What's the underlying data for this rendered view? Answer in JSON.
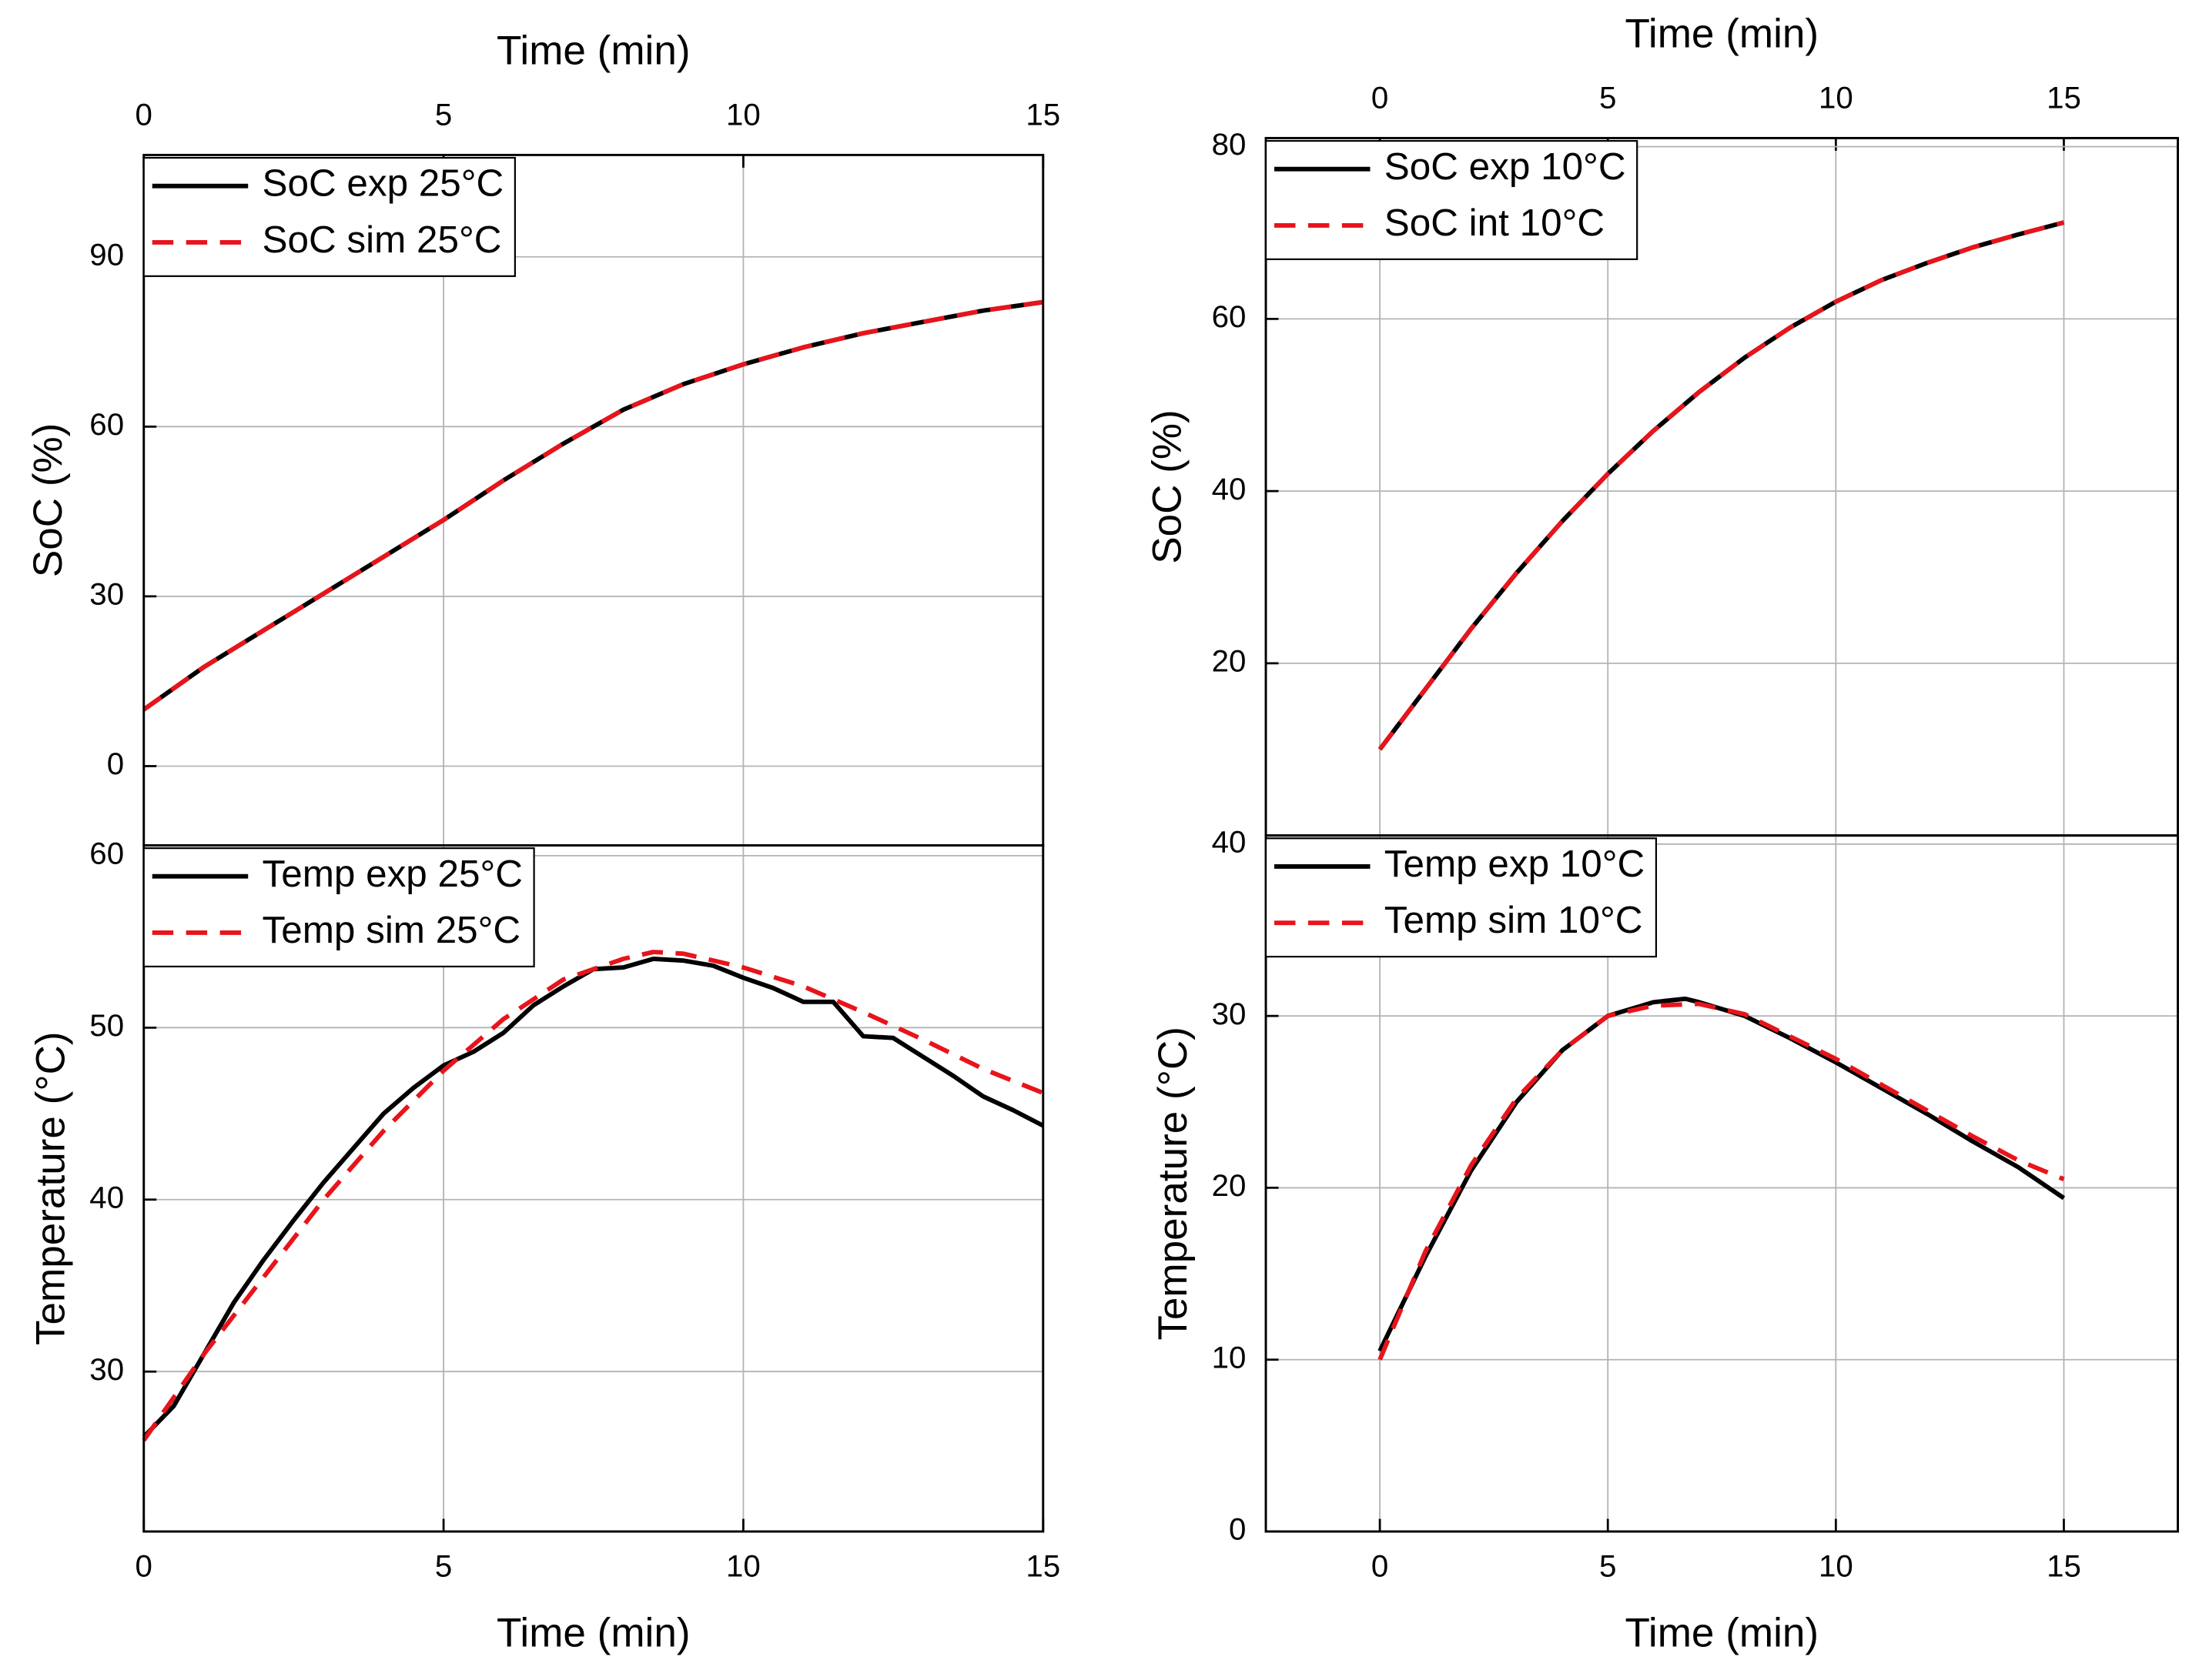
{
  "chart_data": [
    {
      "type": "line",
      "xlabel": "Time (min)",
      "ylabel": "SoC (%)",
      "xaxis_position": "top",
      "xlim": [
        0,
        15
      ],
      "xticks": [
        0,
        5,
        10,
        15
      ],
      "ylim": [
        -14,
        108
      ],
      "yticks": [
        0,
        30,
        60,
        90
      ],
      "grid": true,
      "legend": "upper left",
      "series": [
        {
          "name": "SoC exp 25°C",
          "color": "#000000",
          "dashed": false,
          "x": [
            0,
            1,
            2,
            3,
            4,
            5,
            6,
            7,
            8,
            9,
            10,
            11,
            12,
            13,
            14,
            15
          ],
          "values": [
            10,
            17.5,
            24,
            30.5,
            37,
            43.5,
            50.5,
            57,
            63,
            67.5,
            71,
            74,
            76.5,
            78.5,
            80.5,
            82
          ]
        },
        {
          "name": "SoC sim 25°C",
          "color": "#e8141b",
          "dashed": true,
          "x": [
            0,
            1,
            2,
            3,
            4,
            5,
            6,
            7,
            8,
            9,
            10,
            11,
            12,
            13,
            14,
            15
          ],
          "values": [
            10,
            17.5,
            24,
            30.5,
            37,
            43.5,
            50.5,
            57,
            63,
            67.5,
            71,
            74,
            76.5,
            78.5,
            80.5,
            82
          ]
        }
      ]
    },
    {
      "type": "line",
      "xlabel": "Time (min)",
      "ylabel": "Temperature (°C)",
      "xaxis_position": "bottom",
      "xlim": [
        0,
        15
      ],
      "xticks": [
        0,
        5,
        10,
        15
      ],
      "ylim": [
        20.7,
        60.6
      ],
      "yticks": [
        30,
        40,
        50,
        60
      ],
      "grid": true,
      "legend": "upper left",
      "series": [
        {
          "name": "Temp exp 25°C",
          "color": "#000000",
          "dashed": false,
          "x": [
            0,
            0.5,
            1,
            1.5,
            2,
            2.5,
            3,
            3.5,
            4,
            4.5,
            5,
            5.5,
            6,
            6.5,
            7,
            7.5,
            8,
            8.5,
            9,
            9.5,
            10,
            10.5,
            11,
            11.5,
            12,
            12.5,
            13,
            13.5,
            14,
            14.5,
            15
          ],
          "values": [
            26.2,
            28,
            31,
            34,
            36.5,
            38.8,
            41,
            43,
            45,
            46.5,
            47.8,
            48.6,
            49.7,
            51.3,
            52.4,
            53.4,
            53.5,
            54,
            53.9,
            53.6,
            52.9,
            52.3,
            51.5,
            51.5,
            49.5,
            49.4,
            48.3,
            47.2,
            46,
            45.2,
            44.3
          ]
        },
        {
          "name": "Temp sim 25°C",
          "color": "#e8141b",
          "dashed": true,
          "x": [
            0,
            1,
            2,
            3,
            4,
            5,
            6,
            7,
            8,
            8.5,
            9,
            10,
            11,
            12,
            13,
            14,
            15
          ],
          "values": [
            26,
            31,
            35.5,
            40,
            44,
            47.5,
            50.5,
            52.8,
            54,
            54.4,
            54.3,
            53.5,
            52.4,
            50.9,
            49.3,
            47.6,
            46.2
          ]
        }
      ]
    },
    {
      "type": "line",
      "xlabel": "Time (min)",
      "ylabel": "SoC (%)",
      "xaxis_position": "top",
      "xlim": [
        -2.5,
        17.5
      ],
      "xticks": [
        0,
        5,
        10,
        15
      ],
      "ylim": [
        0,
        81
      ],
      "yticks": [
        20,
        40,
        60,
        80
      ],
      "grid": true,
      "legend": "upper left",
      "series": [
        {
          "name": "SoC exp 10°C",
          "color": "#000000",
          "dashed": false,
          "x": [
            0,
            1,
            2,
            3,
            4,
            5,
            6,
            7,
            8,
            9,
            10,
            11,
            12,
            13,
            14,
            15
          ],
          "values": [
            10,
            17,
            24,
            30.5,
            36.5,
            42,
            47,
            51.5,
            55.5,
            59,
            62,
            64.5,
            66.5,
            68.3,
            69.8,
            71.2
          ]
        },
        {
          "name": "SoC int 10°C",
          "color": "#e8141b",
          "dashed": true,
          "x": [
            0,
            1,
            2,
            3,
            4,
            5,
            6,
            7,
            8,
            9,
            10,
            11,
            12,
            13,
            14,
            15
          ],
          "values": [
            10,
            17,
            24,
            30.5,
            36.5,
            42,
            47,
            51.5,
            55.5,
            59,
            62,
            64.5,
            66.5,
            68.3,
            69.8,
            71.2
          ]
        }
      ]
    },
    {
      "type": "line",
      "xlabel": "Time (min)",
      "ylabel": "Temperature (°C)",
      "xaxis_position": "bottom",
      "xlim": [
        -2.5,
        17.5
      ],
      "xticks": [
        0,
        5,
        10,
        15
      ],
      "ylim": [
        0,
        40.5
      ],
      "yticks": [
        0,
        10,
        20,
        30,
        40
      ],
      "grid": true,
      "legend": "upper left",
      "series": [
        {
          "name": "Temp exp 10°C",
          "color": "#000000",
          "dashed": false,
          "x": [
            0,
            1,
            2,
            3,
            4,
            5,
            6,
            6.7,
            7,
            8,
            9,
            10,
            11,
            12,
            13,
            14,
            15
          ],
          "values": [
            10.5,
            16,
            21,
            25,
            28,
            30,
            30.8,
            31,
            30.8,
            30,
            28.7,
            27.3,
            25.8,
            24.3,
            22.7,
            21.2,
            19.4
          ]
        },
        {
          "name": "Temp sim 10°C",
          "color": "#e8141b",
          "dashed": true,
          "x": [
            0,
            1,
            2,
            3,
            4,
            5,
            6,
            7,
            8,
            9,
            10,
            11,
            12,
            13,
            14,
            15
          ],
          "values": [
            10,
            16.3,
            21.3,
            25.2,
            28,
            30,
            30.6,
            30.7,
            30.1,
            28.8,
            27.5,
            26,
            24.5,
            23,
            21.6,
            20.5
          ]
        }
      ]
    }
  ]
}
